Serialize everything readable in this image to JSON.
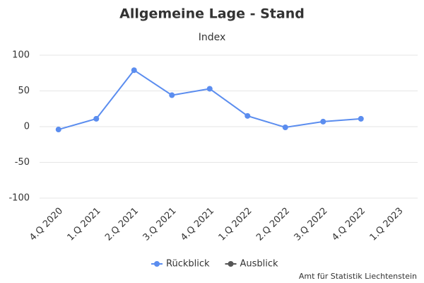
{
  "chart_data": {
    "type": "line",
    "title": "Allgemeine Lage - Stand",
    "subtitle": "Index",
    "categories": [
      "4.Q 2020",
      "1.Q 2021",
      "2.Q 2021",
      "3.Q 2021",
      "4.Q 2021",
      "1.Q 2022",
      "2.Q 2022",
      "3.Q 2022",
      "4.Q 2022",
      "1.Q 2023"
    ],
    "series": [
      {
        "name": "Rückblick",
        "color": "#5b8def",
        "values": [
          -4,
          11,
          79,
          44,
          53,
          15,
          -1,
          7,
          11,
          null
        ]
      },
      {
        "name": "Ausblick",
        "color": "#555555",
        "values": [
          null,
          null,
          null,
          null,
          null,
          null,
          null,
          null,
          null,
          null
        ]
      }
    ],
    "ylim": [
      -100,
      100
    ],
    "yticks": [
      -100,
      -50,
      0,
      50,
      100
    ],
    "grid": true,
    "credit": "Amt für Statistik Liechtenstein"
  }
}
